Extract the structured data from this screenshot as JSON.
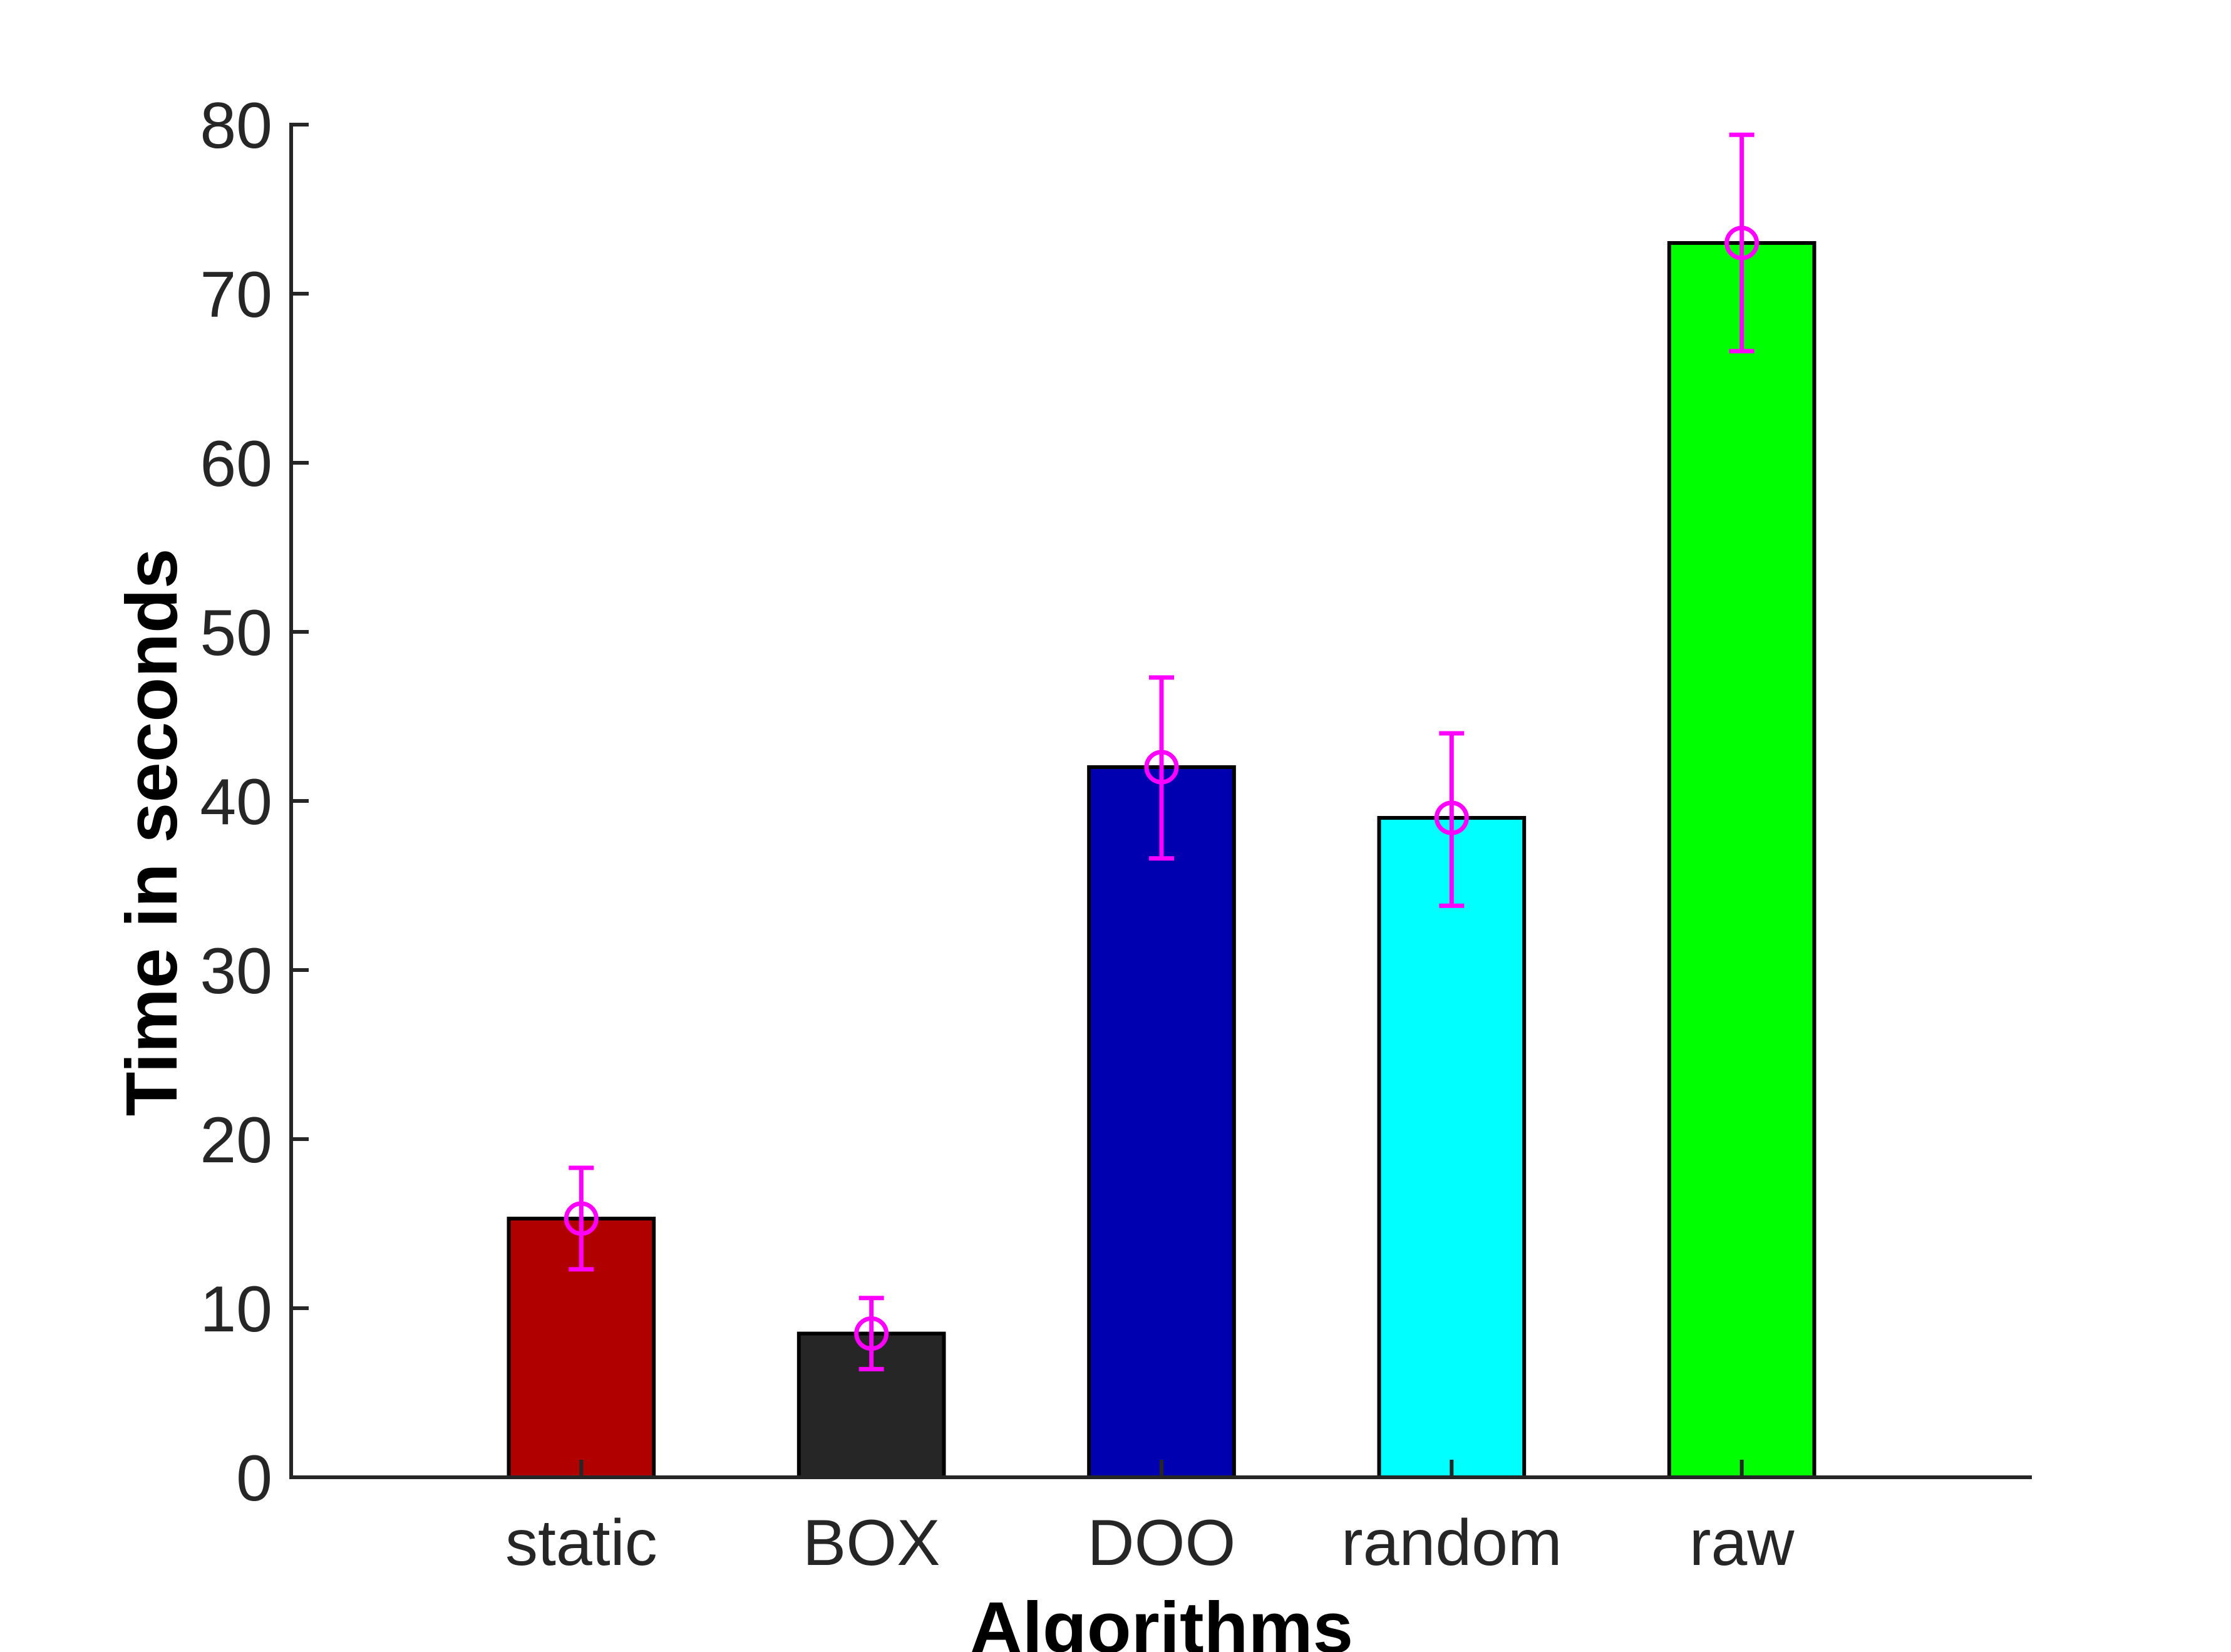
{
  "chart_data": {
    "type": "bar",
    "title": "",
    "xlabel": "Algorithms",
    "ylabel": "Time in seconds",
    "categories": [
      "static",
      "BOX",
      "DOO",
      "random",
      "raw"
    ],
    "values": [
      15.3,
      8.5,
      42.0,
      39.0,
      73.0
    ],
    "errors_lower": [
      12.3,
      6.4,
      36.6,
      33.8,
      66.6
    ],
    "errors_upper": [
      18.3,
      10.6,
      47.3,
      44.0,
      79.4
    ],
    "bar_colors": [
      "#b10000",
      "#262626",
      "#0000b0",
      "#00ffff",
      "#00ff00"
    ],
    "error_color": "#ff00ff",
    "ylim": [
      0,
      80
    ],
    "yticks": [
      "0",
      "10",
      "20",
      "30",
      "40",
      "50",
      "60",
      "70",
      "80"
    ],
    "x_range": [
      0,
      6
    ],
    "grid": false,
    "legend": "none"
  }
}
